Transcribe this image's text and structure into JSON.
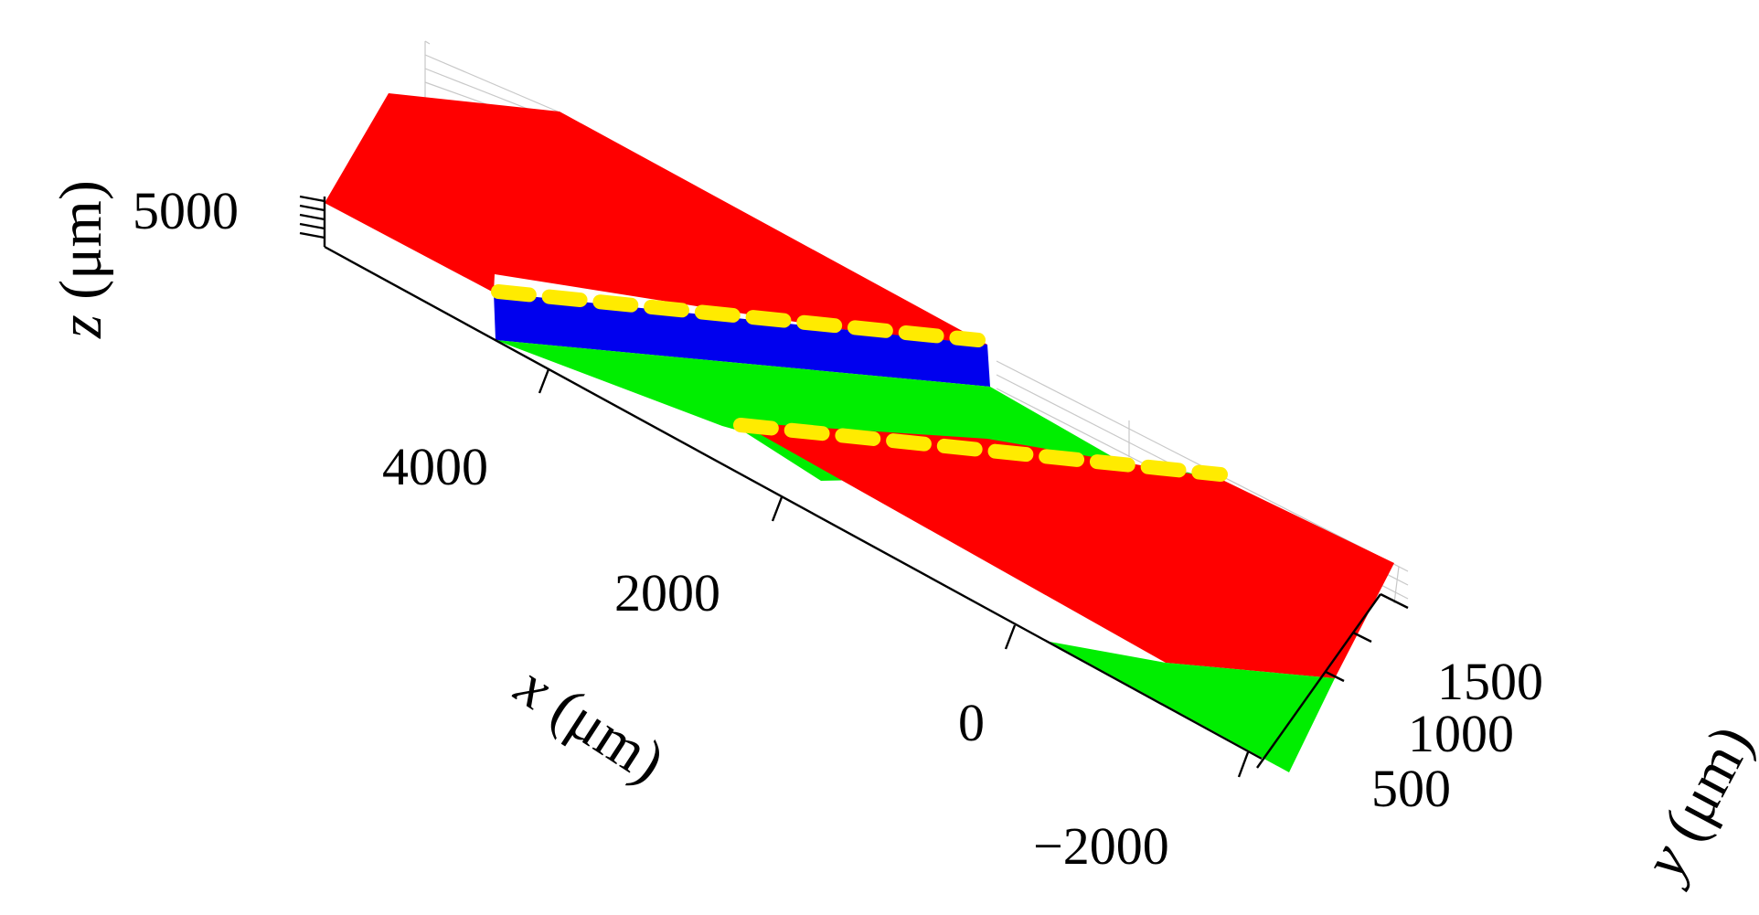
{
  "figure": {
    "x_axis": {
      "label_var": "x",
      "label_unit": " (μm)",
      "ticks": [
        "4000",
        "2000",
        "0",
        "−2000"
      ]
    },
    "y_axis": {
      "label_var": "y",
      "label_unit": " (μm)",
      "ticks": [
        "1500",
        "1000",
        "500"
      ]
    },
    "z_axis": {
      "label_var": "z",
      "label_unit": " (μm)",
      "ticks": [
        "5000"
      ]
    },
    "colors": {
      "red_surface": "#ff0000",
      "green_surface": "#00ee00",
      "blue_surface": "#0000ee",
      "dashed_line": "#ffeb00"
    }
  }
}
